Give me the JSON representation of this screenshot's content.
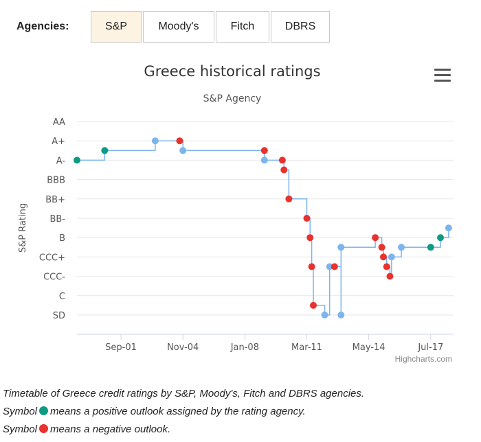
{
  "agencies": {
    "label": "Agencies:",
    "buttons": [
      "S&P",
      "Moody's",
      "Fitch",
      "DBRS"
    ],
    "active": 0
  },
  "credits": "Highcharts.com",
  "caption": {
    "line1": "Timetable of Greece credit ratings by S&P, Moody's, Fitch and DBRS agencies.",
    "line2_pre": "Symbol",
    "line2_post": "means a positive outlook assigned by the rating agency.",
    "line3_pre": "Symbol",
    "line3_post": "means a negative outlook."
  },
  "colors": {
    "positive": "#0e9a83",
    "negative": "#e8322e",
    "stable": "#7cb5ec",
    "line": "#7cb5ec",
    "grid": "#e6e6e6",
    "active_tab": "#fdf3e3"
  },
  "chart_data": {
    "type": "line",
    "step": true,
    "title": "Greece historical ratings",
    "subtitle": "S&P Agency",
    "ylabel": "S&P Rating",
    "xlabel": "",
    "categories": [
      "SD",
      "C",
      "CCC-",
      "CCC+",
      "B",
      "BB-",
      "BB+",
      "BBB",
      "A-",
      "A+",
      "AA"
    ],
    "xticks": [
      "Sep-01",
      "Nov-04",
      "Jan-08",
      "Mar-11",
      "May-14",
      "Jul-17"
    ],
    "xlim": [
      "1999-06",
      "2018-09"
    ],
    "legend": "none",
    "grid": true,
    "series": [
      {
        "points": [
          {
            "date": "1999-06",
            "rating": "A-",
            "outlook": "positive"
          },
          {
            "date": "2000-11",
            "rating": "A",
            "outlook": "positive"
          },
          {
            "date": "2003-06",
            "rating": "A+",
            "outlook": "stable"
          },
          {
            "date": "2004-09",
            "rating": "A+",
            "outlook": "negative"
          },
          {
            "date": "2004-11",
            "rating": "A",
            "outlook": "stable"
          },
          {
            "date": "2009-01",
            "rating": "A",
            "outlook": "negative"
          },
          {
            "date": "2009-01",
            "rating": "A-",
            "outlook": "stable"
          },
          {
            "date": "2009-12",
            "rating": "A-",
            "outlook": "negative"
          },
          {
            "date": "2010-01",
            "rating": "BBB+",
            "outlook": "negative"
          },
          {
            "date": "2010-04",
            "rating": "BB+",
            "outlook": "negative"
          },
          {
            "date": "2011-03",
            "rating": "BB-",
            "outlook": "negative"
          },
          {
            "date": "2011-05",
            "rating": "B",
            "outlook": "negative"
          },
          {
            "date": "2011-06",
            "rating": "CCC",
            "outlook": "negative"
          },
          {
            "date": "2011-07",
            "rating": "CC",
            "outlook": "negative"
          },
          {
            "date": "2012-02",
            "rating": "SD",
            "outlook": "stable"
          },
          {
            "date": "2012-05",
            "rating": "CCC",
            "outlook": "stable"
          },
          {
            "date": "2012-08",
            "rating": "CCC",
            "outlook": "negative"
          },
          {
            "date": "2012-12",
            "rating": "SD",
            "outlook": "stable"
          },
          {
            "date": "2012-12",
            "rating": "B-",
            "outlook": "stable"
          },
          {
            "date": "2014-09",
            "rating": "B",
            "outlook": "stable"
          },
          {
            "date": "2014-09",
            "rating": "B",
            "outlook": "negative"
          },
          {
            "date": "2015-01",
            "rating": "B-",
            "outlook": "negative"
          },
          {
            "date": "2015-02",
            "rating": "CCC+",
            "outlook": "negative"
          },
          {
            "date": "2015-04",
            "rating": "CCC",
            "outlook": "negative"
          },
          {
            "date": "2015-06",
            "rating": "CCC-",
            "outlook": "negative"
          },
          {
            "date": "2015-07",
            "rating": "CCC+",
            "outlook": "stable"
          },
          {
            "date": "2016-01",
            "rating": "B-",
            "outlook": "stable"
          },
          {
            "date": "2017-07",
            "rating": "B-",
            "outlook": "positive"
          },
          {
            "date": "2018-01",
            "rating": "B",
            "outlook": "positive"
          },
          {
            "date": "2018-06",
            "rating": "B+",
            "outlook": "stable"
          }
        ]
      }
    ]
  }
}
